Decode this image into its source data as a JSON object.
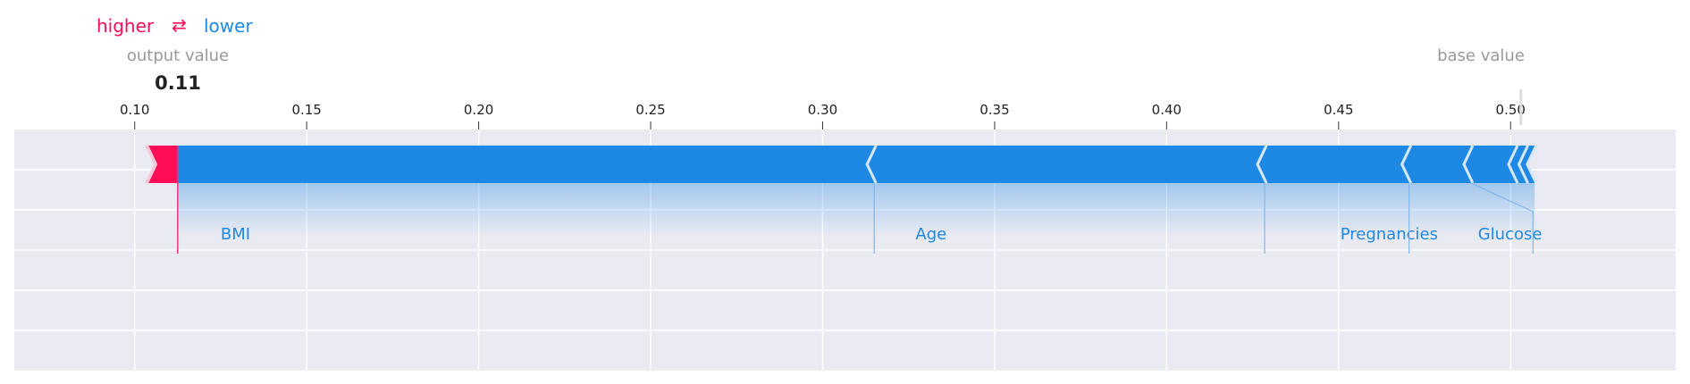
{
  "colors": {
    "higher": "#ff0d57",
    "lower": "#1e88e5",
    "panel": "#eaeaf2",
    "grid": "#ffffff",
    "muted": "#999999",
    "lower_light": "#7fb6ec"
  },
  "legend": {
    "higher_label": "higher",
    "arrow_symbol": "⇄",
    "lower_label": "lower",
    "output_label": "output value",
    "base_label": "base value"
  },
  "chart_data": {
    "type": "force",
    "output_value": 0.11,
    "output_value_text": "0.11",
    "base_value": 0.503,
    "xlim": [
      0.065,
      0.548
    ],
    "ticks": [
      0.1,
      0.15,
      0.2,
      0.25,
      0.3,
      0.35,
      0.4,
      0.45,
      0.5
    ],
    "tick_labels": [
      "0.10",
      "0.15",
      "0.20",
      "0.25",
      "0.30",
      "0.35",
      "0.40",
      "0.45",
      "0.50"
    ],
    "grid": true,
    "higher_segments": [
      {
        "start": 0.104,
        "end": 0.1125
      }
    ],
    "lower_segments": [
      {
        "start": 0.1125,
        "end": 0.315
      },
      {
        "start": 0.315,
        "end": 0.4285
      },
      {
        "start": 0.4285,
        "end": 0.4705
      },
      {
        "start": 0.4705,
        "end": 0.4885
      },
      {
        "start": 0.4885,
        "end": 0.5015
      },
      {
        "start": 0.5015,
        "end": 0.5045
      },
      {
        "start": 0.5045,
        "end": 0.507
      }
    ],
    "feature_labels": [
      {
        "name": "BMI",
        "tick": 0.1125,
        "text_at": 0.125
      },
      {
        "name": "Age",
        "tick": 0.315,
        "text_at": 0.327
      },
      {
        "name": "Pregnancies",
        "tick": 0.4285,
        "text_at": 0.4505
      },
      {
        "name": "Glucose",
        "tick": 0.4705,
        "text_at": 0.4905
      }
    ],
    "glucose_link": {
      "from": 0.4885,
      "to": 0.5065
    }
  }
}
